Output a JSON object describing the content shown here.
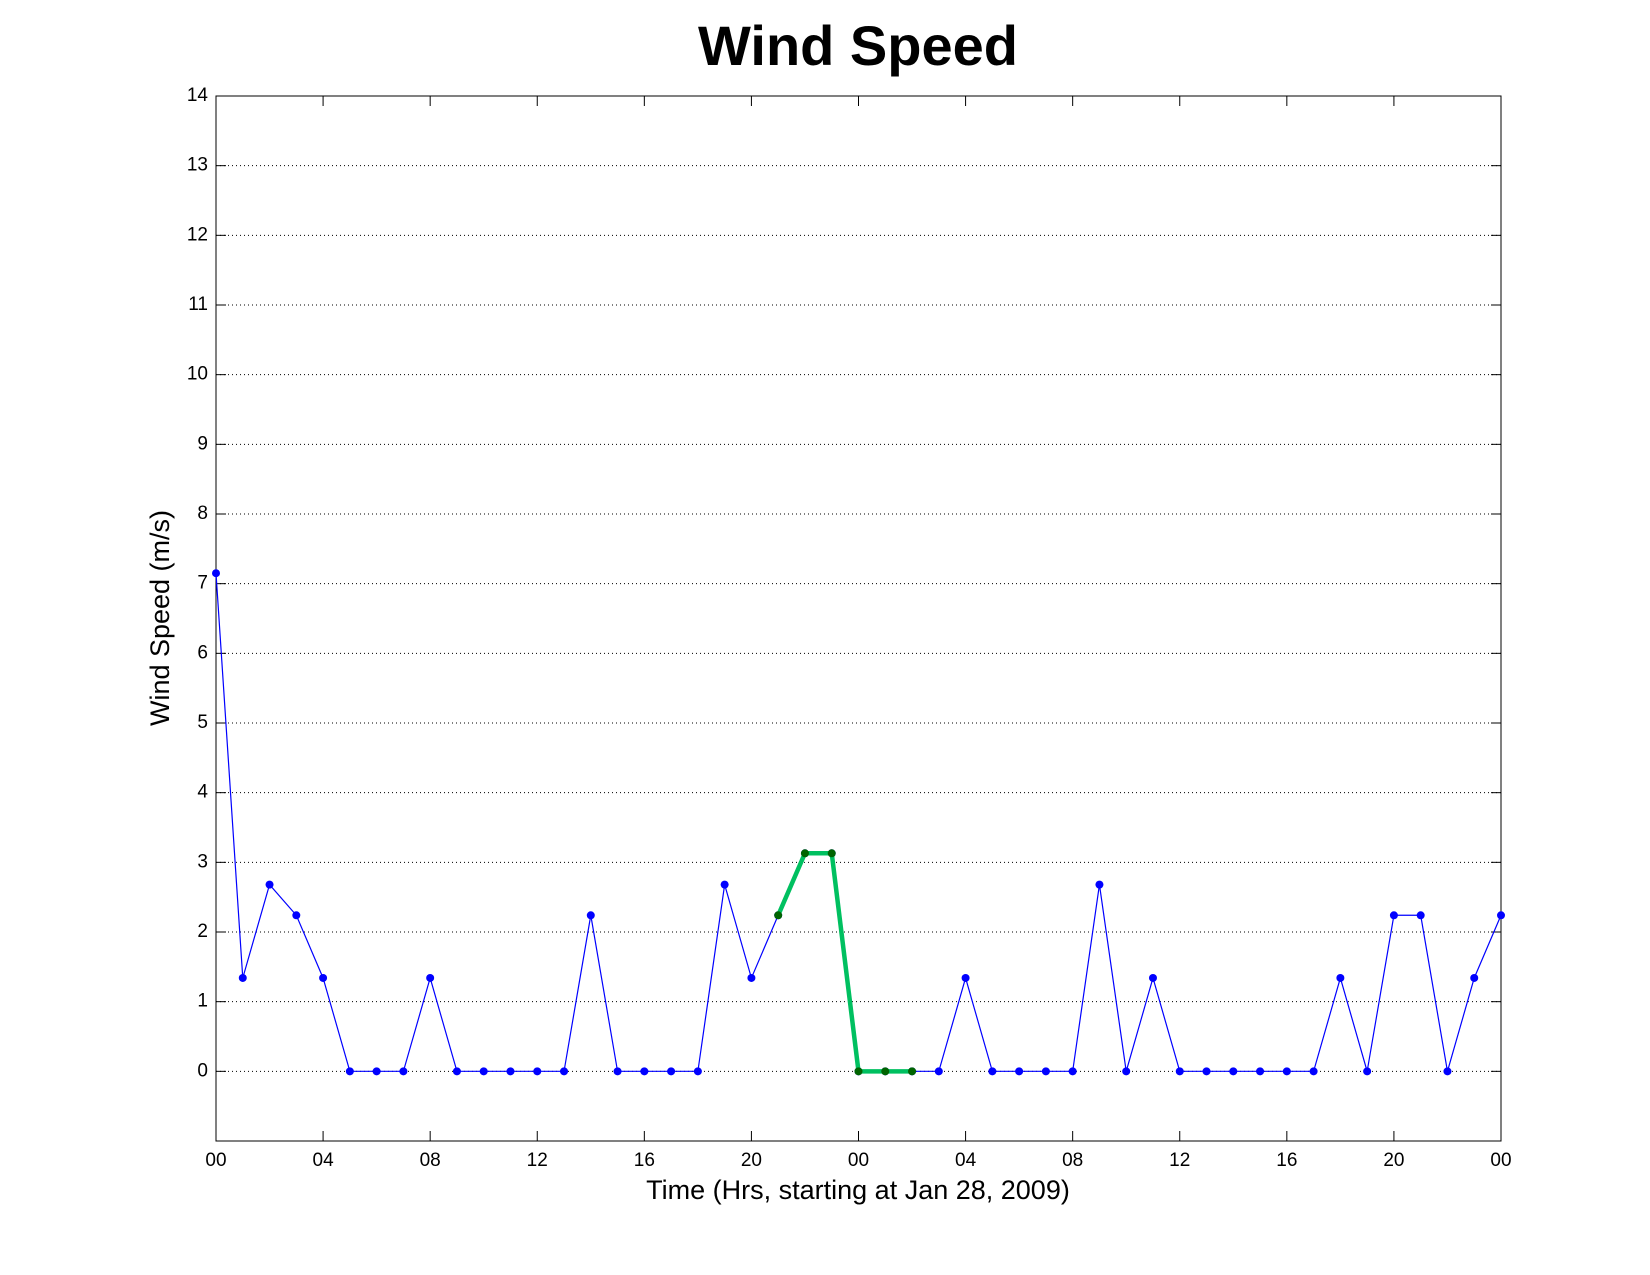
{
  "chart_data": {
    "type": "line",
    "title": "Wind Speed",
    "x_label": "Time (Hrs, starting at Jan 28, 2009)",
    "y_label": "Wind Speed (m/s)",
    "x": [
      0,
      1,
      2,
      3,
      4,
      5,
      6,
      7,
      8,
      9,
      10,
      11,
      12,
      13,
      14,
      15,
      16,
      17,
      18,
      19,
      20,
      21,
      22,
      23,
      24,
      25,
      26,
      27,
      28,
      29,
      30,
      31,
      32,
      33,
      34,
      35,
      36,
      37,
      38,
      39,
      40,
      41,
      42,
      43,
      44,
      45,
      46,
      47,
      48
    ],
    "series": [
      {
        "color": "#0000ff",
        "values": [
          7.15,
          1.34,
          2.68,
          2.24,
          1.34,
          0,
          0,
          0,
          1.34,
          0,
          0,
          0,
          0,
          0,
          2.24,
          0,
          0,
          0,
          0,
          2.68,
          1.34,
          2.24,
          3.13,
          3.13,
          0,
          0,
          0,
          0,
          1.34,
          0,
          0,
          0,
          0,
          2.68,
          0,
          1.34,
          0,
          0,
          0,
          0,
          0,
          0,
          1.34,
          0,
          2.24,
          2.24,
          0,
          1.34,
          2.24
        ]
      },
      {
        "color": "#00c060",
        "marker_color": "#006400",
        "values": [
          null,
          null,
          null,
          null,
          null,
          null,
          null,
          null,
          null,
          null,
          null,
          null,
          null,
          null,
          null,
          null,
          null,
          null,
          null,
          null,
          null,
          2.24,
          3.13,
          3.13,
          0,
          0,
          0,
          null,
          null,
          null,
          null,
          null,
          null,
          null,
          null,
          null,
          null,
          null,
          null,
          null,
          null,
          null,
          null,
          null,
          null,
          null,
          null,
          null,
          null
        ]
      }
    ],
    "xlim": [
      0,
      48
    ],
    "xticks": [
      {
        "value": 0,
        "label": "00"
      },
      {
        "value": 4,
        "label": "04"
      },
      {
        "value": 8,
        "label": "08"
      },
      {
        "value": 12,
        "label": "12"
      },
      {
        "value": 16,
        "label": "16"
      },
      {
        "value": 20,
        "label": "20"
      },
      {
        "value": 24,
        "label": "00"
      },
      {
        "value": 28,
        "label": "04"
      },
      {
        "value": 32,
        "label": "08"
      },
      {
        "value": 36,
        "label": "12"
      },
      {
        "value": 40,
        "label": "16"
      },
      {
        "value": 44,
        "label": "20"
      },
      {
        "value": 48,
        "label": "00"
      }
    ],
    "ylim": [
      -1,
      14
    ],
    "yticks": [
      0,
      1,
      2,
      3,
      4,
      5,
      6,
      7,
      8,
      9,
      10,
      11,
      12,
      13,
      14
    ],
    "grid": true
  }
}
